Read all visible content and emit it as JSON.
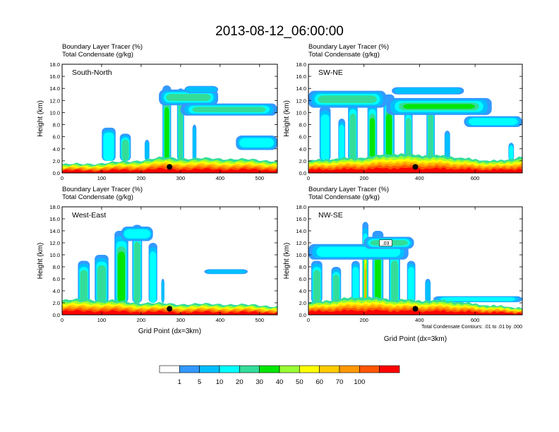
{
  "title": "2013-08-12_06:00:00",
  "colors": [
    "#ffffff",
    "#3399ff",
    "#00bfff",
    "#00ffff",
    "#33dd99",
    "#00e600",
    "#99ff33",
    "#ffff00",
    "#ffcc00",
    "#ff9900",
    "#ff5500",
    "#ff0000"
  ],
  "chart_data": [
    {
      "type": "heatmap",
      "panel": "South-North",
      "var_line1": "Boundary Layer Tracer   (%)",
      "var_line2": "Total Condensate   (g/kg)",
      "ylabel": "Height (km)",
      "xlabel": "",
      "xlim": [
        0,
        545
      ],
      "ylim": [
        0,
        18
      ],
      "xticks": [
        0,
        100,
        200,
        300,
        400,
        500
      ],
      "xtick_labels": [
        "0",
        "100",
        "200",
        "300",
        "400",
        "500"
      ],
      "yticks": [
        0,
        2,
        4,
        6,
        8,
        10,
        12,
        14,
        16,
        18
      ],
      "ytick_labels": [
        "0.0",
        "2.0",
        "4.0",
        "6.0",
        "8.0",
        "10.0",
        "12.0",
        "14.0",
        "16.0",
        "18.0"
      ],
      "marker": {
        "x": 272,
        "y": 1.0
      },
      "note": ""
    },
    {
      "type": "heatmap",
      "panel": "SW-NE",
      "var_line1": "Boundary Layer Tracer   (%)",
      "var_line2": "Total Condensate   (g/kg)",
      "ylabel": "Height (km)",
      "xlabel": "",
      "xlim": [
        0,
        770
      ],
      "ylim": [
        0,
        18
      ],
      "xticks": [
        0,
        200,
        400,
        600
      ],
      "xtick_labels": [
        "0",
        "200",
        "400",
        "600"
      ],
      "yticks": [
        0,
        2,
        4,
        6,
        8,
        10,
        12,
        14,
        16,
        18
      ],
      "ytick_labels": [
        "0.0",
        "2.0",
        "4.0",
        "6.0",
        "8.0",
        "10.0",
        "12.0",
        "14.0",
        "16.0",
        "18.0"
      ],
      "marker": {
        "x": 385,
        "y": 1.0
      },
      "note": ""
    },
    {
      "type": "heatmap",
      "panel": "West-East",
      "var_line1": "Boundary Layer Tracer   (%)",
      "var_line2": "Total Condensate   (g/kg)",
      "ylabel": "Height (km)",
      "xlabel": "Grid Point (dx=3km)",
      "xlim": [
        0,
        545
      ],
      "ylim": [
        0,
        18
      ],
      "xticks": [
        0,
        100,
        200,
        300,
        400,
        500
      ],
      "xtick_labels": [
        "0",
        "100",
        "200",
        "300",
        "400",
        "500"
      ],
      "yticks": [
        0,
        2,
        4,
        6,
        8,
        10,
        12,
        14,
        16,
        18
      ],
      "ytick_labels": [
        "0.0",
        "2.0",
        "4.0",
        "6.0",
        "8.0",
        "10.0",
        "12.0",
        "14.0",
        "16.0",
        "18.0"
      ],
      "marker": {
        "x": 272,
        "y": 1.0
      },
      "note": ""
    },
    {
      "type": "heatmap",
      "panel": "NW-SE",
      "var_line1": "Boundary Layer Tracer   (%)",
      "var_line2": "Total Condensate   (g/kg)",
      "ylabel": "Height (km)",
      "xlabel": "Grid Point (dx=3km)",
      "xlim": [
        0,
        770
      ],
      "ylim": [
        0,
        18
      ],
      "xticks": [
        0,
        200,
        400,
        600
      ],
      "xtick_labels": [
        "0",
        "200",
        "400",
        "600"
      ],
      "yticks": [
        0,
        2,
        4,
        6,
        8,
        10,
        12,
        14,
        16,
        18
      ],
      "ytick_labels": [
        "0.0",
        "2.0",
        "4.0",
        "6.0",
        "8.0",
        "10.0",
        "12.0",
        "14.0",
        "16.0",
        "18.0"
      ],
      "marker": {
        "x": 385,
        "y": 1.0
      },
      "contour_label": ".03",
      "note": "Total Condensate Contours: .01 to .01 by .000"
    }
  ],
  "colorbar": {
    "labels": [
      "1",
      "5",
      "10",
      "20",
      "30",
      "40",
      "50",
      "60",
      "70",
      "100"
    ]
  }
}
